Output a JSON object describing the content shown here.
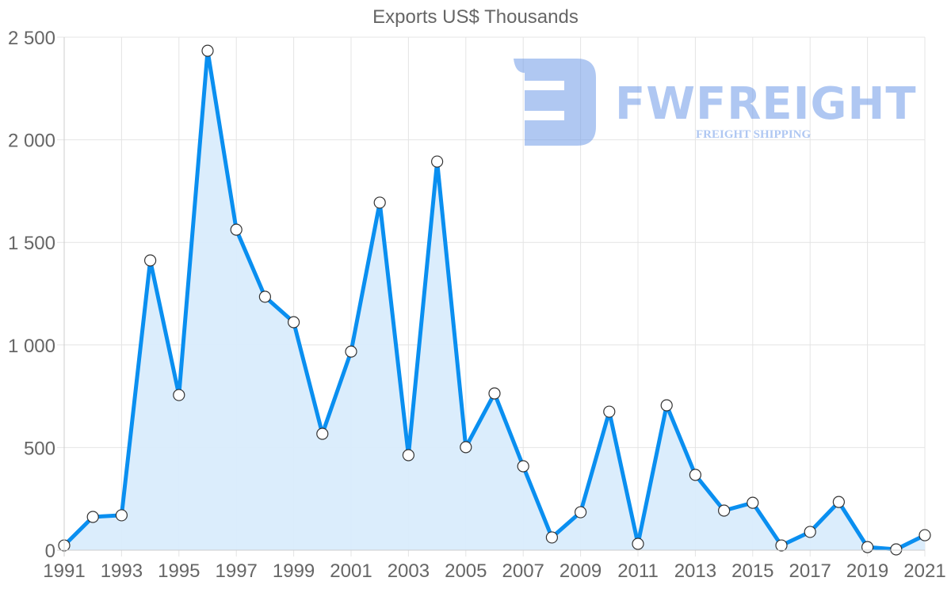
{
  "chart_data": {
    "type": "area",
    "title": "Exports US$ Thousands",
    "xlabel": "",
    "ylabel": "",
    "ylim": [
      0,
      2500
    ],
    "yticks": [
      0,
      500,
      1000,
      1500,
      2000,
      2500
    ],
    "ytick_labels": [
      "0",
      "500",
      "1 000",
      "1 500",
      "2 000",
      "2 500"
    ],
    "xtick_labels": [
      "1991",
      "1993",
      "1995",
      "1997",
      "1999",
      "2001",
      "2003",
      "2005",
      "2007",
      "2009",
      "2011",
      "2013",
      "2015",
      "2017",
      "2019",
      "2021"
    ],
    "grid": true,
    "legend": null,
    "x": [
      1991,
      1992,
      1993,
      1994,
      1995,
      1996,
      1997,
      1998,
      1999,
      2000,
      2001,
      2002,
      2003,
      2004,
      2005,
      2006,
      2007,
      2008,
      2009,
      2010,
      2011,
      2012,
      2013,
      2014,
      2015,
      2016,
      2017,
      2018,
      2019,
      2020,
      2021
    ],
    "series": [
      {
        "name": "Exports US$ Thousands",
        "color": "#0a8ff0",
        "fill": "#d9ecfc",
        "values": [
          23,
          162,
          170,
          1412,
          756,
          2434,
          1562,
          1235,
          1111,
          567,
          968,
          1694,
          463,
          1894,
          502,
          764,
          409,
          62,
          185,
          675,
          31,
          706,
          367,
          193,
          231,
          23,
          89,
          235,
          15,
          4,
          73
        ]
      }
    ]
  },
  "watermark": {
    "brand": "FWFREIGHT",
    "tagline": "FREIGHT SHIPPING",
    "color": "#6f9be8"
  }
}
